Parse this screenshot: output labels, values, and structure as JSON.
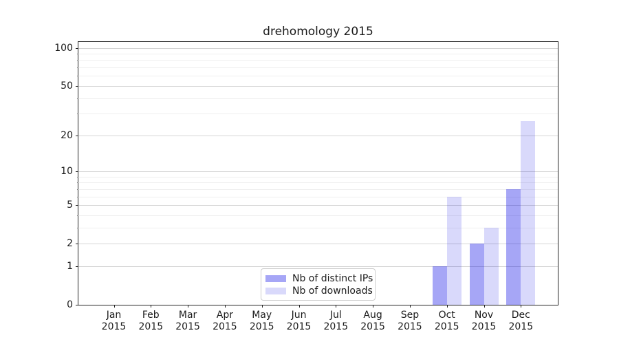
{
  "chart_data": {
    "type": "bar",
    "title": "drehomology 2015",
    "xlabel": "",
    "ylabel": "",
    "categories": [
      "Jan 2015",
      "Feb 2015",
      "Mar 2015",
      "Apr 2015",
      "May 2015",
      "Jun 2015",
      "Jul 2015",
      "Aug 2015",
      "Sep 2015",
      "Oct 2015",
      "Nov 2015",
      "Dec 2015"
    ],
    "series": [
      {
        "name": "Nb of distinct IPs",
        "color": "rgba(0,0,230,0.35)",
        "values": [
          0,
          0,
          0,
          0,
          0,
          0,
          0,
          0,
          0,
          1,
          2,
          7
        ]
      },
      {
        "name": "Nb of downloads",
        "color": "rgba(0,0,230,0.15)",
        "values": [
          0,
          0,
          0,
          0,
          0,
          0,
          0,
          0,
          0,
          6,
          3,
          26
        ]
      }
    ],
    "y_axis": {
      "scale": "log-like (position proportional to log10(1+value))",
      "ticks": [
        0,
        1,
        2,
        5,
        10,
        20,
        50,
        100
      ],
      "minor_gridline_values": [
        3,
        4,
        6,
        7,
        8,
        9,
        30,
        40,
        60,
        70,
        80,
        90
      ],
      "ylim": [
        0,
        112
      ],
      "grid": "horizontal only"
    },
    "legend": {
      "position": "lower center-left inside plot",
      "entries": [
        "Nb of distinct IPs",
        "Nb of downloads"
      ]
    }
  }
}
